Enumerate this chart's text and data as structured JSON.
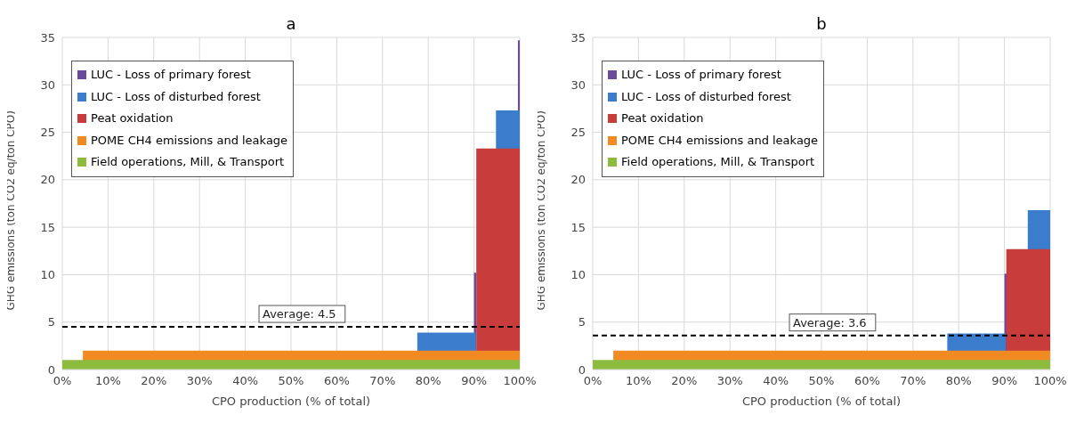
{
  "chart_data": [
    {
      "type": "area",
      "title": "a",
      "xlabel": "CPO production (% of total)",
      "ylabel": "GHG emissions (ton CO2 eq/ton CPO)",
      "xlim": [
        0,
        100
      ],
      "xticks": [
        {
          "value": 0,
          "label": "0%"
        },
        {
          "value": 10,
          "label": "10%"
        },
        {
          "value": 20,
          "label": "20%"
        },
        {
          "value": 30,
          "label": "30%"
        },
        {
          "value": 40,
          "label": "40%"
        },
        {
          "value": 50,
          "label": "50%"
        },
        {
          "value": 60,
          "label": "60%"
        },
        {
          "value": 70,
          "label": "70%"
        },
        {
          "value": 80,
          "label": "80%"
        },
        {
          "value": 90,
          "label": "90%"
        },
        {
          "value": 100,
          "label": "100%"
        }
      ],
      "ylim": [
        0,
        35
      ],
      "yticks": [
        0,
        5,
        10,
        15,
        20,
        25,
        30,
        35
      ],
      "grid": true,
      "legend": "top left",
      "series": [
        {
          "name": "LUC - Loss of primary forest",
          "color": "#6a4a9c",
          "x": [
            90,
            90.5,
            90.5,
            99.6,
            99.6,
            100
          ],
          "values": [
            10.2,
            10.2,
            0,
            0,
            34.7,
            34.7
          ]
        },
        {
          "name": "LUC - Loss of disturbed forest",
          "color": "#3b7dcc",
          "x": [
            77.6,
            90.4
          ],
          "values": [
            3.9,
            3.9
          ]
        },
        {
          "color": "#3b7dcc",
          "x": [
            94.8,
            100
          ],
          "values": [
            27.3,
            27.3
          ]
        },
        {
          "name": "Peat oxidation",
          "color": "#c83c3c",
          "x": [
            90.5,
            100
          ],
          "values": [
            23.3,
            23.3
          ]
        },
        {
          "name": "POME CH4 emissions and leakage",
          "color": "#f28a24",
          "x": [
            4.5,
            100
          ],
          "values": [
            2,
            2
          ]
        },
        {
          "name": "Field operations, Mill, & Transport",
          "color": "#8dbb3e",
          "x": [
            0,
            100
          ],
          "values": [
            1,
            1
          ]
        }
      ],
      "ref_lines": [
        {
          "axis": "y",
          "value": 4.5,
          "label": "Average: 4.5",
          "line_style": "dashed",
          "color": "#000000"
        }
      ]
    },
    {
      "type": "area",
      "title": "b",
      "xlabel": "CPO production (% of total)",
      "ylabel": "GHG emissions (ton CO2 eq/ton CPO)",
      "xlim": [
        0,
        100
      ],
      "xticks": [
        {
          "value": 0,
          "label": "0%"
        },
        {
          "value": 10,
          "label": "10%"
        },
        {
          "value": 20,
          "label": "20%"
        },
        {
          "value": 30,
          "label": "30%"
        },
        {
          "value": 40,
          "label": "40%"
        },
        {
          "value": 50,
          "label": "50%"
        },
        {
          "value": 60,
          "label": "60%"
        },
        {
          "value": 70,
          "label": "70%"
        },
        {
          "value": 80,
          "label": "80%"
        },
        {
          "value": 90,
          "label": "90%"
        },
        {
          "value": 100,
          "label": "100%"
        }
      ],
      "ylim": [
        0,
        35
      ],
      "yticks": [
        0,
        5,
        10,
        15,
        20,
        25,
        30,
        35
      ],
      "grid": true,
      "legend": "top left",
      "series": [
        {
          "name": "LUC - Loss of primary forest",
          "color": "#6a4a9c",
          "x": [
            90,
            90.5
          ],
          "values": [
            10.1,
            10.1
          ]
        },
        {
          "name": "LUC - Loss of disturbed forest",
          "color": "#3b7dcc",
          "x": [
            77.5,
            90.3
          ],
          "values": [
            3.8,
            3.8
          ]
        },
        {
          "color": "#3b7dcc",
          "x": [
            95.1,
            100
          ],
          "values": [
            16.8,
            16.8
          ]
        },
        {
          "name": "Peat oxidation",
          "color": "#c83c3c",
          "x": [
            90.4,
            100
          ],
          "values": [
            12.7,
            12.7
          ]
        },
        {
          "name": "POME CH4 emissions and leakage",
          "color": "#f28a24",
          "x": [
            4.5,
            100
          ],
          "values": [
            2,
            2
          ]
        },
        {
          "name": "Field operations, Mill, & Transport",
          "color": "#8dbb3e",
          "x": [
            0,
            100
          ],
          "values": [
            1,
            1
          ]
        }
      ],
      "ref_lines": [
        {
          "axis": "y",
          "value": 3.6,
          "label": "Average: 3.6",
          "line_style": "dashed",
          "color": "#000000"
        }
      ]
    }
  ]
}
